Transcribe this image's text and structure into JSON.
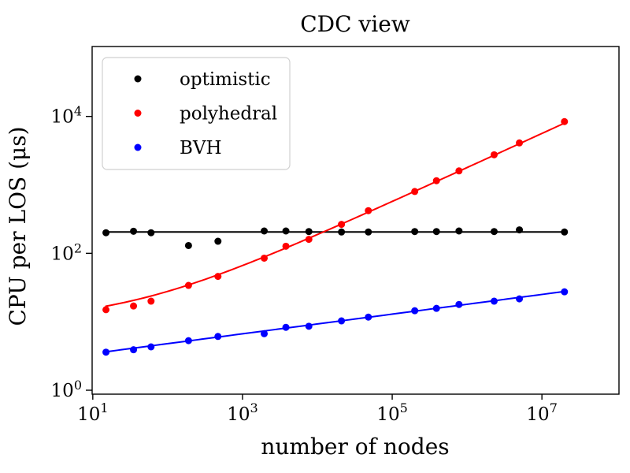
{
  "figure": {
    "title": "CDC view",
    "xlabel": "number of nodes",
    "ylabel": "CPU per LOS (μs)"
  },
  "chart_data": {
    "type": "scatter",
    "title": "CDC view",
    "xlabel": "number of nodes",
    "ylabel": "CPU per LOS (μs)",
    "x_scale": "log",
    "y_scale": "log",
    "xlim": [
      9.8,
      107000000
    ],
    "ylim": [
      0.876,
      105000
    ],
    "grid": false,
    "x": [
      15,
      35,
      60,
      190,
      470,
      1950,
      3800,
      7700,
      21000,
      48000,
      200000,
      390000,
      780000,
      2300000,
      5000000,
      20000000
    ],
    "series": [
      {
        "name": "optimistic",
        "color": "#000000",
        "values": [
          200,
          210,
          200,
          130,
          150,
          212,
          212,
          208,
          205,
          205,
          208,
          208,
          212,
          208,
          220,
          205
        ],
        "fit": {
          "type": "constant",
          "a": 205
        }
      },
      {
        "name": "polyhedral",
        "color": "#ff0000",
        "values": [
          15,
          17,
          20,
          34,
          46,
          85,
          127,
          160,
          265,
          420,
          800,
          1150,
          1600,
          2750,
          4100,
          8400
        ],
        "fit": {
          "type": "sqrt",
          "a": 10,
          "b": 1.78
        }
      },
      {
        "name": "BVH",
        "color": "#0000ff",
        "values": [
          3.6,
          3.9,
          4.3,
          5.3,
          6.1,
          6.7,
          8.3,
          8.6,
          10.3,
          11.7,
          14.5,
          15.7,
          17.9,
          20,
          21.6,
          27.4
        ],
        "fit": {
          "type": "power",
          "c": 2.47,
          "p": 0.1438
        }
      }
    ],
    "x_ticks": [
      {
        "base": "10",
        "exp": "1"
      },
      {
        "base": "10",
        "exp": "3"
      },
      {
        "base": "10",
        "exp": "5"
      },
      {
        "base": "10",
        "exp": "7"
      }
    ],
    "y_ticks": [
      {
        "base": "10",
        "exp": "0"
      },
      {
        "base": "10",
        "exp": "2"
      },
      {
        "base": "10",
        "exp": "4"
      }
    ],
    "legend": {
      "position": "upper left",
      "entries": [
        "optimistic",
        "polyhedral",
        "BVH"
      ]
    }
  }
}
